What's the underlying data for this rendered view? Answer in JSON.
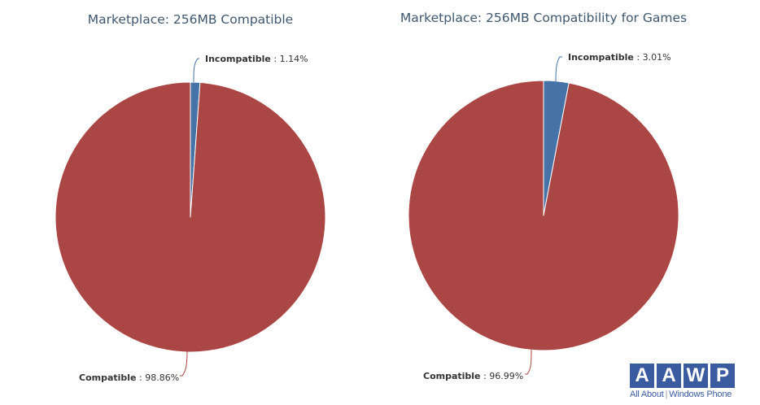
{
  "chart_data": [
    {
      "type": "pie",
      "title": "Marketplace: 256MB Compatible",
      "slices": [
        {
          "label": "Incompatible",
          "value": 1.14,
          "display": "1.14%",
          "color": "#4572a7"
        },
        {
          "label": "Compatible",
          "value": 98.86,
          "display": "98.86%",
          "color": "#aa4643"
        }
      ]
    },
    {
      "type": "pie",
      "title": "Marketplace: 256MB Compatibility for Games",
      "slices": [
        {
          "label": "Incompatible",
          "value": 3.01,
          "display": "3.01%",
          "color": "#4572a7"
        },
        {
          "label": "Compatible",
          "value": 96.99,
          "display": "96.99%",
          "color": "#aa4643"
        }
      ]
    }
  ],
  "logo": {
    "letters": [
      "A",
      "A",
      "W",
      "P"
    ],
    "tagline_left": "All About",
    "separator": "|",
    "tagline_right": "Windows Phone"
  }
}
